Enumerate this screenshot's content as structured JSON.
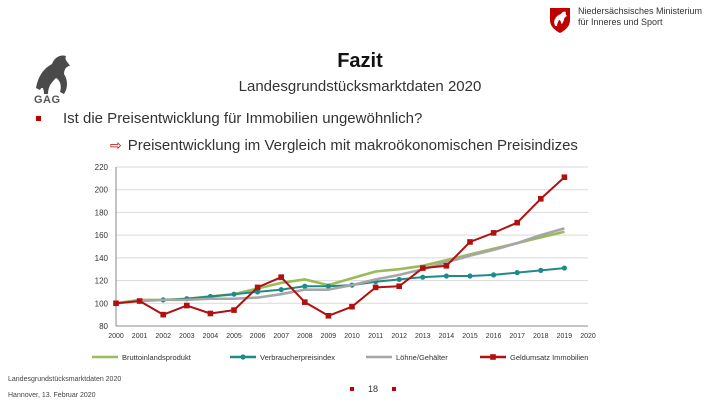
{
  "header": {
    "logo_text": "GAG",
    "ministry_lines": [
      "Niedersächsisches Ministerium",
      "für Inneres und Sport"
    ],
    "title": "Fazit",
    "subtitle": "Landesgrundstücksmarktdaten 2020"
  },
  "bullets": {
    "question": "Ist die Preisentwicklung für Immobilien ungewöhnlich?",
    "answer": "Preisentwicklung im Vergleich mit makroökonomischen Preisindizes"
  },
  "footer": {
    "line1": "Landesgrundstücksmarktdaten 2020",
    "line2": "Hannover, 13. Februar 2020",
    "page": "18"
  },
  "colors": {
    "accent": "#c00000",
    "bip": "#9bbb59",
    "vpi": "#1f8a8a",
    "loehne": "#a6a6a6",
    "geld": "#b01010",
    "grid": "#d9d9d9"
  },
  "chart_data": {
    "type": "line",
    "x": [
      "2000",
      "2001",
      "2002",
      "2003",
      "2004",
      "2005",
      "2006",
      "2007",
      "2008",
      "2009",
      "2010",
      "2011",
      "2012",
      "2013",
      "2014",
      "2015",
      "2016",
      "2017",
      "2018",
      "2019",
      "2020"
    ],
    "ylim": [
      80,
      220
    ],
    "yticks": [
      80,
      100,
      120,
      140,
      160,
      180,
      200,
      220
    ],
    "series": [
      {
        "name": "Bruttoinlandsprodukt",
        "color_key": "bip",
        "marker": "none",
        "values": [
          100,
          103,
          103,
          104,
          106,
          108,
          113,
          118,
          121,
          116,
          122,
          128,
          130,
          133,
          138,
          143,
          148,
          153,
          158,
          163,
          null
        ]
      },
      {
        "name": "Verbraucherpreisindex",
        "color_key": "vpi",
        "marker": "dot",
        "values": [
          100,
          102,
          103,
          104,
          106,
          108,
          110,
          112,
          115,
          115,
          116,
          119,
          121,
          123,
          124,
          124,
          125,
          127,
          129,
          131,
          null
        ]
      },
      {
        "name": "Löhne/Gehälter",
        "color_key": "loehne",
        "marker": "none",
        "values": [
          100,
          102,
          103,
          103,
          104,
          104,
          105,
          108,
          112,
          112,
          116,
          121,
          125,
          130,
          136,
          142,
          147,
          153,
          160,
          166,
          null
        ]
      },
      {
        "name": "Geldumsatz Immobilien",
        "color_key": "geld",
        "marker": "square",
        "values": [
          100,
          102,
          90,
          98,
          91,
          94,
          114,
          123,
          101,
          89,
          97,
          114,
          115,
          131,
          133,
          154,
          162,
          171,
          192,
          211,
          null
        ]
      }
    ],
    "legend_position": "bottom"
  }
}
